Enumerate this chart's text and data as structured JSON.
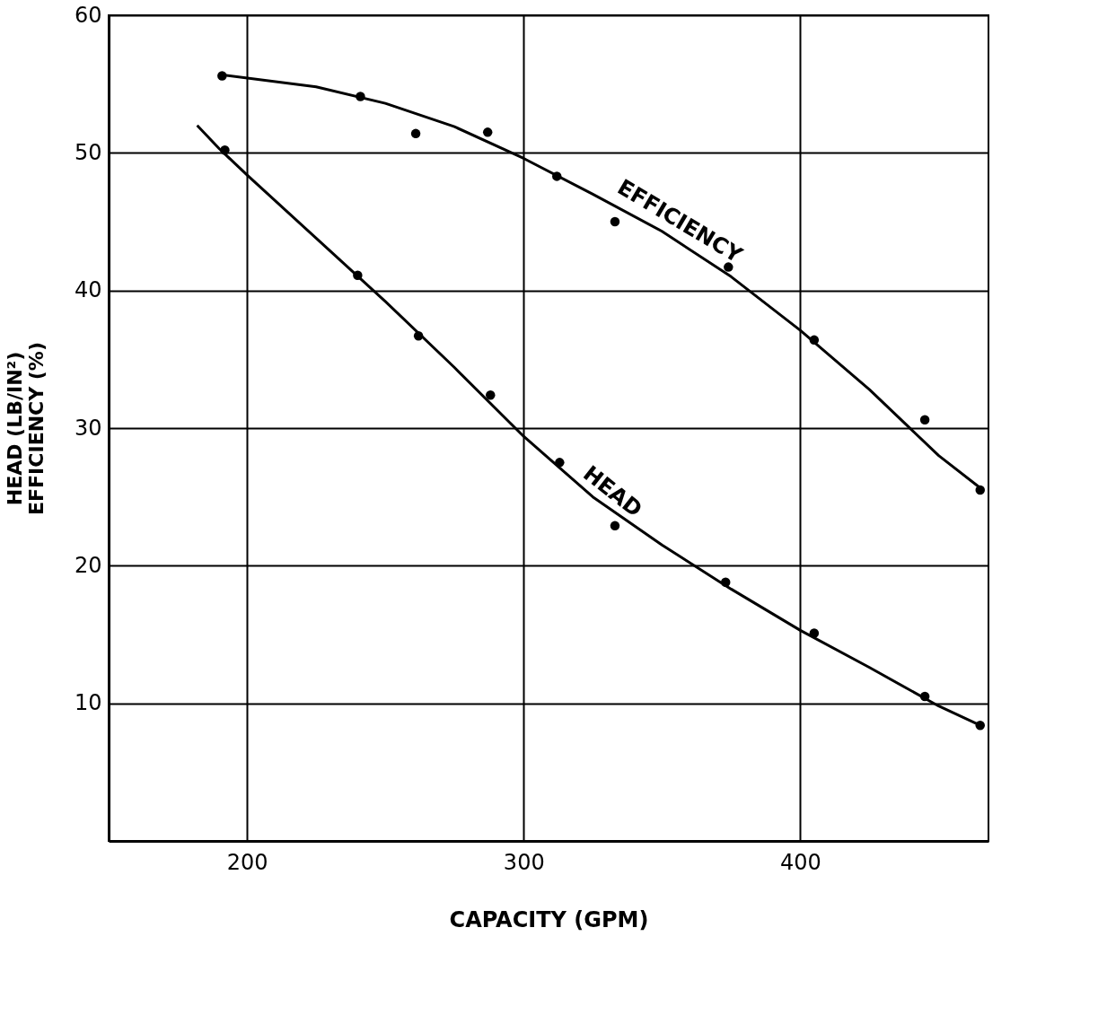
{
  "chart_data": {
    "type": "scatter",
    "xlabel": "CAPACITY  (GPM)",
    "ylabel": [
      "HEAD  (LB/IN²)",
      "EFFICIENCY  (%)"
    ],
    "xlim": [
      150,
      468
    ],
    "xticks": [
      200,
      300,
      400
    ],
    "ylim": [
      0,
      60
    ],
    "yticks": [
      10,
      20,
      30,
      40,
      50,
      60
    ],
    "grid": true,
    "marker": "circle",
    "series": [
      {
        "color": "#000000",
        "x": [
          191,
          241,
          261,
          287,
          312,
          333,
          374,
          405,
          445,
          465
        ],
        "values": [
          55.6,
          54.1,
          51.4,
          51.5,
          48.3,
          45.0,
          41.7,
          36.4,
          30.6,
          25.5
        ]
      },
      {
        "color": "#000000",
        "x": [
          192,
          240,
          262,
          288,
          313,
          333,
          373,
          405,
          445,
          465
        ],
        "values": [
          50.2,
          41.1,
          36.7,
          32.4,
          27.5,
          22.9,
          18.8,
          15.1,
          10.5,
          8.4
        ]
      },
      {
        "type": "line",
        "name": "EFFICIENCY",
        "color": "#000000",
        "line_style": "solid",
        "marker": "none",
        "x": [
          190,
          225,
          250,
          275,
          300,
          325,
          350,
          375,
          400,
          425,
          450,
          466
        ],
        "values": [
          55.7,
          54.8,
          53.6,
          51.9,
          49.6,
          47.0,
          44.3,
          41.0,
          37.1,
          32.8,
          28.0,
          25.5
        ]
      },
      {
        "type": "line",
        "name": "HEAD",
        "color": "#000000",
        "line_style": "solid",
        "marker": "none",
        "x": [
          182,
          190,
          200,
          225,
          250,
          275,
          300,
          325,
          350,
          375,
          400,
          425,
          450,
          466
        ],
        "values": [
          52.0,
          50.3,
          48.4,
          43.8,
          39.2,
          34.4,
          29.4,
          25.0,
          21.5,
          18.3,
          15.3,
          12.6,
          9.8,
          8.3
        ]
      }
    ]
  }
}
